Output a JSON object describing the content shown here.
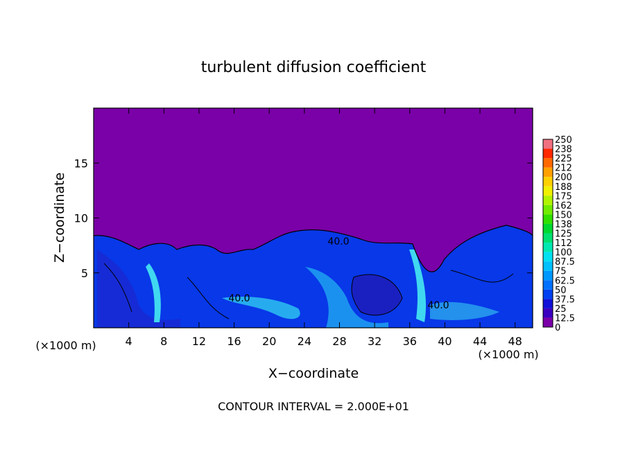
{
  "chart_data": {
    "type": "contour",
    "title": "turbulent diffusion coefficient",
    "xlabel": "X−coordinate",
    "ylabel": "Z−coordinate",
    "x_unit_label": "(×1000 m)",
    "y_unit_label": "(×1000 m)",
    "footer": "CONTOUR INTERVAL = 2.000E+01",
    "xlim": [
      0,
      50
    ],
    "xticks": [
      4,
      8,
      12,
      16,
      20,
      24,
      28,
      32,
      36,
      40,
      44,
      48
    ],
    "ylim": [
      0,
      20
    ],
    "yticks": [
      5,
      10,
      15
    ],
    "annotations": [
      "40.0",
      "40.0",
      "40.0"
    ],
    "colorbar": {
      "levels": [
        0,
        12.5,
        25,
        37.5,
        50,
        62.5,
        75,
        87.5,
        100,
        112,
        125,
        138,
        150,
        162,
        175,
        188,
        200,
        212,
        225,
        238,
        250
      ],
      "colors": [
        "#7a00a8",
        "#3a00c0",
        "#1010d8",
        "#0040f0",
        "#0070ff",
        "#0098ff",
        "#00c0ff",
        "#00e0f0",
        "#00e8b0",
        "#00e070",
        "#00d830",
        "#30e000",
        "#70ec00",
        "#b0f400",
        "#f0f000",
        "#ffd000",
        "#ffa000",
        "#ff6800",
        "#ff2800",
        "#f07080"
      ]
    }
  }
}
